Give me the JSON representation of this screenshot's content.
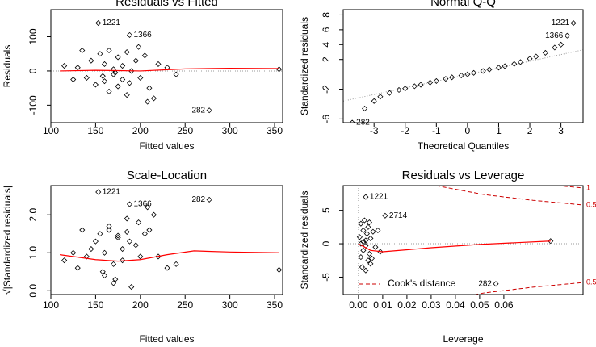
{
  "chart_data": [
    {
      "type": "scatter",
      "title": "Residuals vs Fitted",
      "x_label": "Fitted values",
      "y_label": "Residuals",
      "xlim": [
        100,
        359
      ],
      "ylim": [
        -151,
        179
      ],
      "xticks": [
        100,
        150,
        200,
        250,
        300,
        350
      ],
      "yticks": [
        -100,
        0,
        100
      ],
      "ref_hline": 0,
      "points": {
        "x": [
          130,
          140,
          145,
          150,
          155,
          160,
          160,
          165,
          165,
          170,
          170,
          175,
          175,
          180,
          180,
          185,
          185,
          190,
          195,
          200,
          205,
          210,
          215,
          220,
          230,
          240,
          125,
          115,
          135,
          158,
          172,
          188,
          198,
          208,
          355,
          153,
          188,
          277
        ],
        "y": [
          10,
          -20,
          30,
          -40,
          50,
          20,
          -30,
          60,
          -60,
          5,
          -10,
          40,
          -45,
          15,
          -25,
          55,
          -70,
          0,
          30,
          -20,
          45,
          -50,
          -80,
          20,
          10,
          -10,
          -25,
          15,
          60,
          -15,
          -5,
          -35,
          70,
          -90,
          5,
          140,
          105,
          -115
        ],
        "labels": [
          null,
          null,
          null,
          null,
          null,
          null,
          null,
          null,
          null,
          null,
          null,
          null,
          null,
          null,
          null,
          null,
          null,
          null,
          null,
          null,
          null,
          null,
          null,
          null,
          null,
          null,
          null,
          null,
          null,
          null,
          null,
          null,
          null,
          null,
          null,
          "1221",
          "1366",
          "282"
        ]
      },
      "smooth": {
        "color": "#ff0000",
        "x": [
          110,
          150,
          175,
          200,
          250,
          300,
          355
        ],
        "y": [
          0,
          2,
          1,
          0,
          6,
          8,
          7
        ]
      }
    },
    {
      "type": "qq",
      "title": "Normal Q-Q",
      "x_label": "Theoretical Quantiles",
      "y_label": "Standardized residuals",
      "xlim": [
        -3.99,
        3.71
      ],
      "ylim": [
        -6.5,
        8.7
      ],
      "xticks": [
        -3,
        -2,
        -1,
        0,
        1,
        2,
        3
      ],
      "yticks": [
        -6,
        -2,
        2,
        4,
        6,
        8
      ],
      "points": {
        "x": [
          -3.3,
          -3.0,
          -2.8,
          -2.5,
          -2.2,
          -2.0,
          -1.7,
          -1.5,
          -1.2,
          -1.0,
          -0.7,
          -0.5,
          -0.2,
          0,
          0.2,
          0.5,
          0.7,
          1.0,
          1.2,
          1.5,
          1.7,
          2.0,
          2.2,
          2.5,
          2.8,
          3.0,
          -3.7,
          3.2,
          3.4
        ],
        "y": [
          -4.6,
          -3.6,
          -3.0,
          -2.5,
          -2.1,
          -1.9,
          -1.6,
          -1.4,
          -1.1,
          -0.9,
          -0.6,
          -0.4,
          -0.15,
          0,
          0.2,
          0.45,
          0.65,
          0.9,
          1.1,
          1.4,
          1.65,
          2.1,
          2.4,
          2.9,
          3.6,
          4.0,
          -6.5,
          5.2,
          6.9
        ],
        "labels": [
          null,
          null,
          null,
          null,
          null,
          null,
          null,
          null,
          null,
          null,
          null,
          null,
          null,
          null,
          null,
          null,
          null,
          null,
          null,
          null,
          null,
          null,
          null,
          null,
          null,
          null,
          "282",
          "1366",
          "1221"
        ]
      },
      "qq_line": {
        "x": [
          -3.99,
          3.71
        ],
        "y": [
          -3.6,
          3.3
        ]
      }
    },
    {
      "type": "scatter",
      "title": "Scale-Location",
      "x_label": "Fitted values",
      "y_label": "√|Standardized residuals|",
      "xlim": [
        100,
        359
      ],
      "ylim": [
        -0.1,
        2.77
      ],
      "xticks": [
        100,
        150,
        200,
        250,
        300,
        350
      ],
      "yticks": [
        {
          "value": 0,
          "label": "0.0"
        },
        {
          "value": 1,
          "label": "1.0"
        },
        {
          "value": 2,
          "label": "2.0"
        }
      ],
      "points": {
        "x": [
          130,
          140,
          145,
          150,
          155,
          160,
          160,
          165,
          165,
          170,
          170,
          175,
          175,
          180,
          180,
          185,
          185,
          190,
          195,
          200,
          205,
          210,
          215,
          220,
          230,
          240,
          125,
          115,
          135,
          158,
          172,
          188,
          198,
          208,
          355,
          153,
          188,
          277
        ],
        "y": [
          0.6,
          0.9,
          1.1,
          1.3,
          1.5,
          0.4,
          1.0,
          1.6,
          1.7,
          0.2,
          0.7,
          1.4,
          1.45,
          0.8,
          1.1,
          1.55,
          1.9,
          0.1,
          1.2,
          0.9,
          1.5,
          1.6,
          2.0,
          0.9,
          0.6,
          0.7,
          1.0,
          0.8,
          1.6,
          0.5,
          0.3,
          1.3,
          1.8,
          2.2,
          0.55,
          2.6,
          2.28,
          2.4
        ],
        "labels": [
          null,
          null,
          null,
          null,
          null,
          null,
          null,
          null,
          null,
          null,
          null,
          null,
          null,
          null,
          null,
          null,
          null,
          null,
          null,
          null,
          null,
          null,
          null,
          null,
          null,
          null,
          null,
          null,
          null,
          null,
          null,
          null,
          null,
          null,
          null,
          "1221",
          "1366",
          "282"
        ]
      },
      "smooth": {
        "color": "#ff0000",
        "x": [
          110,
          150,
          175,
          200,
          230,
          260,
          300,
          355
        ],
        "y": [
          0.95,
          0.82,
          0.78,
          0.82,
          0.95,
          1.05,
          1.02,
          1.0
        ]
      }
    },
    {
      "type": "leverage",
      "title": "Residuals vs Leverage",
      "x_label": "Leverage",
      "y_label": "Standardized residuals",
      "xlim": [
        -0.0063,
        0.0927
      ],
      "ylim": [
        -7.6,
        8.7
      ],
      "xticks": [
        {
          "value": 0,
          "label": "0.00"
        },
        0.01,
        0.02,
        0.03,
        0.04,
        0.05,
        0.06
      ],
      "yticks": [
        -5,
        0,
        5
      ],
      "ref_hline": 0,
      "ref_vline": 0,
      "points": {
        "x": [
          0.0005,
          0.001,
          0.001,
          0.0015,
          0.002,
          0.002,
          0.0025,
          0.003,
          0.003,
          0.0035,
          0.004,
          0.004,
          0.0045,
          0.005,
          0.005,
          0.006,
          0.007,
          0.008,
          0.009,
          0.001,
          0.002,
          0.003,
          0.0045,
          0.0055,
          0.0793,
          0.003,
          0.011,
          0.0567
        ],
        "y": [
          1.0,
          -2.0,
          3.0,
          -3.5,
          2.0,
          -1.0,
          3.5,
          0.5,
          -4.0,
          1.5,
          -2.5,
          2.5,
          -1.5,
          0.8,
          -3.0,
          1.8,
          -0.5,
          2.0,
          -1.2,
          0,
          0.3,
          -0.3,
          3.2,
          -2.2,
          0.4,
          7.0,
          4.2,
          -6.0
        ],
        "labels": [
          null,
          null,
          null,
          null,
          null,
          null,
          null,
          null,
          null,
          null,
          null,
          null,
          null,
          null,
          null,
          null,
          null,
          null,
          null,
          null,
          null,
          null,
          null,
          null,
          null,
          "1221",
          "2714",
          "282"
        ]
      },
      "smooth": {
        "color": "#ff0000",
        "x": [
          0,
          0.005,
          0.01,
          0.03,
          0.05,
          0.0793
        ],
        "y": [
          0,
          -1.0,
          -1.2,
          -0.6,
          -0.1,
          0.4
        ]
      },
      "cooks_color": "#cc0000",
      "legend_label": "Cook's distance",
      "cooks_lines": [
        {
          "label": "1",
          "x": [
            0.082,
            0.0927
          ],
          "y": [
            8.7,
            8.35
          ]
        },
        {
          "label": "0.5",
          "x": [
            0.032,
            0.052,
            0.072,
            0.0927
          ],
          "y": [
            8.7,
            7.35,
            6.5,
            5.8
          ]
        },
        {
          "label": "0.5",
          "x": [
            0.032,
            0.052,
            0.072,
            0.0927
          ],
          "y": [
            -8.7,
            -7.35,
            -6.5,
            -5.8
          ]
        }
      ]
    }
  ]
}
